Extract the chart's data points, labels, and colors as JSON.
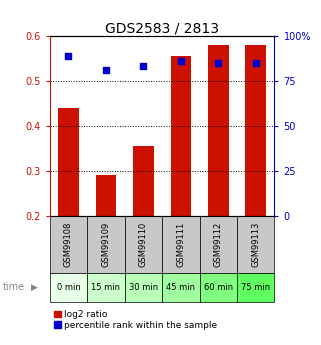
{
  "title": "GDS2583 / 2813",
  "samples": [
    "GSM99108",
    "GSM99109",
    "GSM99110",
    "GSM99111",
    "GSM99112",
    "GSM99113"
  ],
  "time_labels": [
    "0 min",
    "15 min",
    "30 min",
    "45 min",
    "60 min",
    "75 min"
  ],
  "log2_ratio": [
    0.44,
    0.29,
    0.355,
    0.555,
    0.58,
    0.58
  ],
  "percentile_rank": [
    0.555,
    0.525,
    0.533,
    0.545,
    0.54,
    0.54
  ],
  "bar_bottom": 0.2,
  "ylim": [
    0.2,
    0.6
  ],
  "ylim_right": [
    0,
    100
  ],
  "yticks_left": [
    0.2,
    0.3,
    0.4,
    0.5,
    0.6
  ],
  "yticks_right": [
    0,
    25,
    50,
    75,
    100
  ],
  "bar_color": "#cc1100",
  "dot_color": "#0000cc",
  "sample_box_color": "#c8c8c8",
  "time_colors": [
    "#e8ffe8",
    "#ccffcc",
    "#b8ffb8",
    "#a0ffa0",
    "#80ff80",
    "#60ff60"
  ],
  "legend_items": [
    "log2 ratio",
    "percentile rank within the sample"
  ],
  "legend_colors": [
    "#cc1100",
    "#0000cc"
  ],
  "bar_width": 0.55,
  "title_fontsize": 10,
  "tick_fontsize": 7,
  "sample_fontsize": 6,
  "time_fontsize": 6,
  "legend_fontsize": 6.5
}
